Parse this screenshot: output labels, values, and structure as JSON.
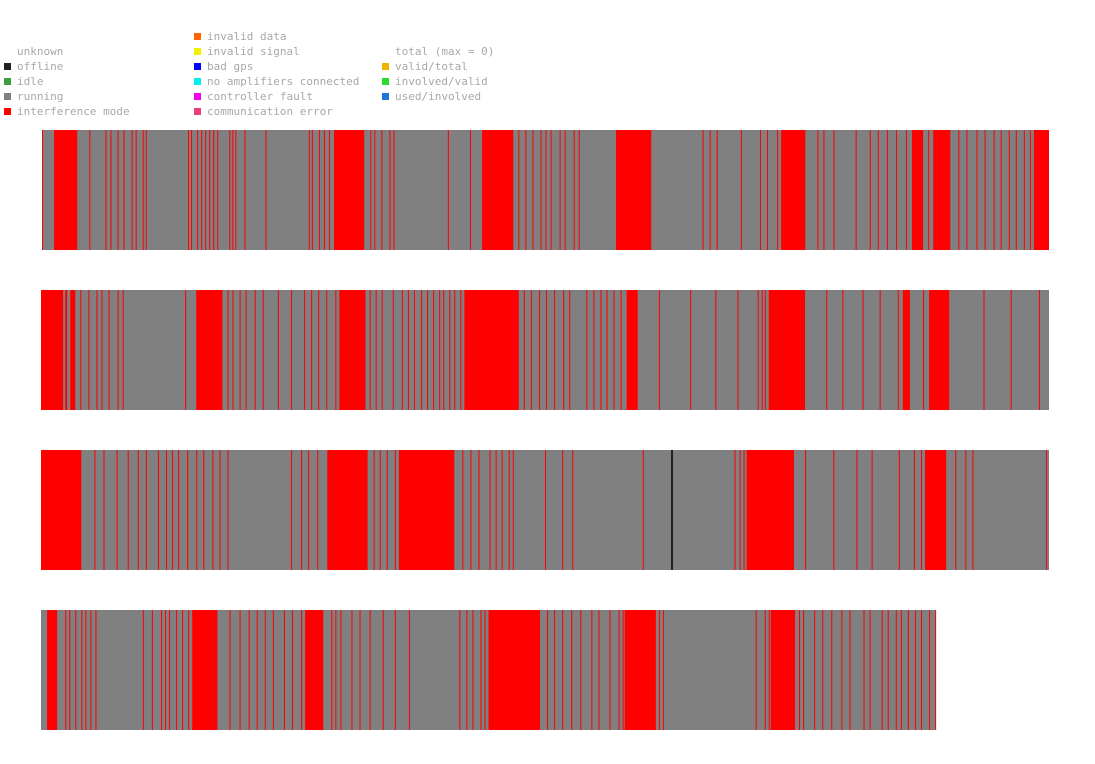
{
  "legend": {
    "status": [
      {
        "label": "unknown",
        "color": ""
      },
      {
        "label": "offline",
        "color": "#202020"
      },
      {
        "label": "idle",
        "color": "#3ca03c"
      },
      {
        "label": "running",
        "color": "#808080"
      },
      {
        "label": "interference mode",
        "color": "#ff0000"
      }
    ],
    "errors": [
      {
        "label": "invalid data",
        "color": "#ff6400"
      },
      {
        "label": "invalid signal",
        "color": "#f0f000"
      },
      {
        "label": "bad gps",
        "color": "#0000ff"
      },
      {
        "label": "no amplifiers connected",
        "color": "#00f0f0"
      },
      {
        "label": "controller fault",
        "color": "#f000f0"
      },
      {
        "label": "communication error",
        "color": "#f03c78"
      }
    ],
    "ratios": [
      {
        "label": "total (max = 0)",
        "color": ""
      },
      {
        "label": "valid/total",
        "color": "#f0b400"
      },
      {
        "label": "involved/valid",
        "color": "#28dc28"
      },
      {
        "label": "used/involved",
        "color": "#1e78dc"
      }
    ]
  },
  "chart_data": {
    "type": "heatmap",
    "title": "",
    "colors": {
      "running": "#808080",
      "interference mode": "#ff0000",
      "offline": "#202020",
      "idle": "#3ca03c"
    },
    "rows": [
      {
        "length": 1.0,
        "interference_mode": [
          [
            0.0,
            0.001
          ],
          [
            0.012,
            0.035
          ],
          [
            0.047,
            0.048
          ],
          [
            0.063,
            0.064
          ],
          [
            0.068,
            0.069
          ],
          [
            0.075,
            0.076
          ],
          [
            0.081,
            0.082
          ],
          [
            0.089,
            0.09
          ],
          [
            0.093,
            0.094
          ],
          [
            0.1,
            0.101
          ],
          [
            0.103,
            0.104
          ],
          [
            0.145,
            0.146
          ],
          [
            0.148,
            0.149
          ],
          [
            0.154,
            0.155
          ],
          [
            0.158,
            0.159
          ],
          [
            0.162,
            0.163
          ],
          [
            0.166,
            0.167
          ],
          [
            0.17,
            0.171
          ],
          [
            0.174,
            0.175
          ],
          [
            0.186,
            0.187
          ],
          [
            0.189,
            0.19
          ],
          [
            0.192,
            0.193
          ],
          [
            0.201,
            0.202
          ],
          [
            0.222,
            0.223
          ],
          [
            0.265,
            0.266
          ],
          [
            0.268,
            0.269
          ],
          [
            0.275,
            0.276
          ],
          [
            0.28,
            0.281
          ],
          [
            0.285,
            0.286
          ],
          [
            0.29,
            0.32
          ],
          [
            0.326,
            0.327
          ],
          [
            0.33,
            0.331
          ],
          [
            0.337,
            0.338
          ],
          [
            0.345,
            0.346
          ],
          [
            0.349,
            0.35
          ],
          [
            0.403,
            0.404
          ],
          [
            0.425,
            0.426
          ],
          [
            0.437,
            0.468
          ],
          [
            0.473,
            0.474
          ],
          [
            0.48,
            0.481
          ],
          [
            0.487,
            0.488
          ],
          [
            0.495,
            0.496
          ],
          [
            0.5,
            0.501
          ],
          [
            0.505,
            0.506
          ],
          [
            0.514,
            0.515
          ],
          [
            0.519,
            0.52
          ],
          [
            0.528,
            0.529
          ],
          [
            0.533,
            0.534
          ],
          [
            0.57,
            0.605
          ],
          [
            0.656,
            0.657
          ],
          [
            0.663,
            0.664
          ],
          [
            0.67,
            0.671
          ],
          [
            0.694,
            0.695
          ],
          [
            0.713,
            0.714
          ],
          [
            0.72,
            0.721
          ],
          [
            0.73,
            0.731
          ],
          [
            0.734,
            0.758
          ],
          [
            0.77,
            0.771
          ],
          [
            0.776,
            0.777
          ],
          [
            0.786,
            0.787
          ],
          [
            0.808,
            0.809
          ],
          [
            0.822,
            0.823
          ],
          [
            0.83,
            0.831
          ],
          [
            0.839,
            0.84
          ],
          [
            0.848,
            0.849
          ],
          [
            0.858,
            0.859
          ],
          [
            0.864,
            0.875
          ],
          [
            0.88,
            0.881
          ],
          [
            0.885,
            0.902
          ],
          [
            0.91,
            0.911
          ],
          [
            0.918,
            0.919
          ],
          [
            0.928,
            0.929
          ],
          [
            0.936,
            0.937
          ],
          [
            0.945,
            0.946
          ],
          [
            0.952,
            0.953
          ],
          [
            0.96,
            0.961
          ],
          [
            0.967,
            0.968
          ],
          [
            0.975,
            0.976
          ],
          [
            0.981,
            0.982
          ],
          [
            0.985,
            1.0
          ]
        ]
      },
      {
        "length": 1.0,
        "interference_mode": [
          [
            0.0,
            0.022
          ],
          [
            0.024,
            0.026
          ],
          [
            0.029,
            0.034
          ],
          [
            0.039,
            0.04
          ],
          [
            0.047,
            0.048
          ],
          [
            0.055,
            0.056
          ],
          [
            0.06,
            0.061
          ],
          [
            0.067,
            0.068
          ],
          [
            0.076,
            0.077
          ],
          [
            0.081,
            0.082
          ],
          [
            0.143,
            0.144
          ],
          [
            0.154,
            0.18
          ],
          [
            0.185,
            0.186
          ],
          [
            0.19,
            0.191
          ],
          [
            0.197,
            0.198
          ],
          [
            0.203,
            0.204
          ],
          [
            0.212,
            0.213
          ],
          [
            0.22,
            0.221
          ],
          [
            0.235,
            0.236
          ],
          [
            0.248,
            0.249
          ],
          [
            0.261,
            0.262
          ],
          [
            0.268,
            0.269
          ],
          [
            0.275,
            0.276
          ],
          [
            0.283,
            0.284
          ],
          [
            0.292,
            0.293
          ],
          [
            0.296,
            0.322
          ],
          [
            0.326,
            0.327
          ],
          [
            0.332,
            0.333
          ],
          [
            0.338,
            0.339
          ],
          [
            0.349,
            0.35
          ],
          [
            0.358,
            0.359
          ],
          [
            0.364,
            0.365
          ],
          [
            0.37,
            0.371
          ],
          [
            0.377,
            0.378
          ],
          [
            0.383,
            0.384
          ],
          [
            0.389,
            0.39
          ],
          [
            0.395,
            0.396
          ],
          [
            0.399,
            0.4
          ],
          [
            0.405,
            0.406
          ],
          [
            0.41,
            0.411
          ],
          [
            0.416,
            0.417
          ],
          [
            0.42,
            0.474
          ],
          [
            0.479,
            0.48
          ],
          [
            0.486,
            0.487
          ],
          [
            0.494,
            0.495
          ],
          [
            0.501,
            0.502
          ],
          [
            0.509,
            0.51
          ],
          [
            0.518,
            0.519
          ],
          [
            0.524,
            0.525
          ],
          [
            0.541,
            0.542
          ],
          [
            0.548,
            0.549
          ],
          [
            0.555,
            0.556
          ],
          [
            0.561,
            0.562
          ],
          [
            0.568,
            0.569
          ],
          [
            0.575,
            0.576
          ],
          [
            0.581,
            0.592
          ],
          [
            0.613,
            0.614
          ],
          [
            0.644,
            0.645
          ],
          [
            0.669,
            0.67
          ],
          [
            0.691,
            0.692
          ],
          [
            0.711,
            0.712
          ],
          [
            0.715,
            0.716
          ],
          [
            0.718,
            0.719
          ],
          [
            0.722,
            0.758
          ],
          [
            0.779,
            0.78
          ],
          [
            0.795,
            0.796
          ],
          [
            0.815,
            0.816
          ],
          [
            0.832,
            0.833
          ],
          [
            0.85,
            0.851
          ],
          [
            0.855,
            0.862
          ],
          [
            0.875,
            0.876
          ],
          [
            0.881,
            0.901
          ],
          [
            0.935,
            0.936
          ],
          [
            0.962,
            0.963
          ],
          [
            0.99,
            0.991
          ]
        ]
      },
      {
        "length": 1.0,
        "interference_mode": [
          [
            0.0,
            0.04
          ],
          [
            0.053,
            0.054
          ],
          [
            0.062,
            0.063
          ],
          [
            0.075,
            0.076
          ],
          [
            0.086,
            0.087
          ],
          [
            0.096,
            0.097
          ],
          [
            0.104,
            0.105
          ],
          [
            0.116,
            0.117
          ],
          [
            0.124,
            0.125
          ],
          [
            0.13,
            0.131
          ],
          [
            0.136,
            0.137
          ],
          [
            0.145,
            0.146
          ],
          [
            0.154,
            0.155
          ],
          [
            0.161,
            0.162
          ],
          [
            0.17,
            0.171
          ],
          [
            0.177,
            0.178
          ],
          [
            0.185,
            0.186
          ],
          [
            0.248,
            0.249
          ],
          [
            0.258,
            0.259
          ],
          [
            0.265,
            0.266
          ],
          [
            0.274,
            0.275
          ],
          [
            0.284,
            0.324
          ],
          [
            0.33,
            0.331
          ],
          [
            0.336,
            0.337
          ],
          [
            0.343,
            0.344
          ],
          [
            0.351,
            0.352
          ],
          [
            0.355,
            0.41
          ],
          [
            0.418,
            0.419
          ],
          [
            0.426,
            0.427
          ],
          [
            0.434,
            0.435
          ],
          [
            0.445,
            0.446
          ],
          [
            0.451,
            0.452
          ],
          [
            0.457,
            0.458
          ],
          [
            0.464,
            0.465
          ],
          [
            0.468,
            0.469
          ],
          [
            0.5,
            0.501
          ],
          [
            0.517,
            0.518
          ],
          [
            0.527,
            0.528
          ],
          [
            0.597,
            0.598
          ],
          [
            0.688,
            0.689
          ],
          [
            0.693,
            0.694
          ],
          [
            0.697,
            0.698
          ],
          [
            0.7,
            0.747
          ],
          [
            0.758,
            0.759
          ],
          [
            0.786,
            0.787
          ],
          [
            0.809,
            0.81
          ],
          [
            0.824,
            0.825
          ],
          [
            0.851,
            0.852
          ],
          [
            0.866,
            0.867
          ],
          [
            0.873,
            0.874
          ],
          [
            0.877,
            0.898
          ],
          [
            0.907,
            0.908
          ],
          [
            0.917,
            0.918
          ],
          [
            0.924,
            0.925
          ],
          [
            0.997,
            0.998
          ]
        ],
        "offline": [
          [
            0.625,
            0.627
          ]
        ]
      },
      {
        "length": 0.888,
        "interference_mode": [
          [
            0.006,
            0.016
          ],
          [
            0.024,
            0.025
          ],
          [
            0.028,
            0.029
          ],
          [
            0.034,
            0.035
          ],
          [
            0.04,
            0.041
          ],
          [
            0.044,
            0.045
          ],
          [
            0.049,
            0.05
          ],
          [
            0.054,
            0.055
          ],
          [
            0.101,
            0.102
          ],
          [
            0.11,
            0.111
          ],
          [
            0.119,
            0.12
          ],
          [
            0.123,
            0.124
          ],
          [
            0.127,
            0.128
          ],
          [
            0.134,
            0.135
          ],
          [
            0.14,
            0.141
          ],
          [
            0.146,
            0.147
          ],
          [
            0.15,
            0.175
          ],
          [
            0.187,
            0.188
          ],
          [
            0.197,
            0.198
          ],
          [
            0.206,
            0.207
          ],
          [
            0.214,
            0.215
          ],
          [
            0.222,
            0.223
          ],
          [
            0.23,
            0.231
          ],
          [
            0.241,
            0.242
          ],
          [
            0.249,
            0.25
          ],
          [
            0.258,
            0.259
          ],
          [
            0.262,
            0.28
          ],
          [
            0.288,
            0.289
          ],
          [
            0.292,
            0.293
          ],
          [
            0.297,
            0.298
          ],
          [
            0.308,
            0.309
          ],
          [
            0.316,
            0.317
          ],
          [
            0.326,
            0.327
          ],
          [
            0.339,
            0.34
          ],
          [
            0.351,
            0.352
          ],
          [
            0.365,
            0.366
          ],
          [
            0.415,
            0.416
          ],
          [
            0.422,
            0.423
          ],
          [
            0.428,
            0.429
          ],
          [
            0.436,
            0.437
          ],
          [
            0.44,
            0.441
          ],
          [
            0.444,
            0.495
          ],
          [
            0.502,
            0.503
          ],
          [
            0.509,
            0.51
          ],
          [
            0.517,
            0.518
          ],
          [
            0.526,
            0.527
          ],
          [
            0.535,
            0.536
          ],
          [
            0.546,
            0.547
          ],
          [
            0.553,
            0.554
          ],
          [
            0.564,
            0.565
          ],
          [
            0.573,
            0.574
          ],
          [
            0.577,
            0.578
          ],
          [
            0.579,
            0.61
          ],
          [
            0.613,
            0.614
          ],
          [
            0.617,
            0.618
          ],
          [
            0.709,
            0.71
          ],
          [
            0.718,
            0.719
          ],
          [
            0.722,
            0.723
          ],
          [
            0.724,
            0.748
          ],
          [
            0.752,
            0.753
          ],
          [
            0.756,
            0.757
          ],
          [
            0.767,
            0.768
          ],
          [
            0.775,
            0.776
          ],
          [
            0.784,
            0.785
          ],
          [
            0.794,
            0.795
          ],
          [
            0.802,
            0.803
          ],
          [
            0.816,
            0.817
          ],
          [
            0.822,
            0.823
          ],
          [
            0.834,
            0.835
          ],
          [
            0.84,
            0.841
          ],
          [
            0.848,
            0.849
          ],
          [
            0.853,
            0.854
          ],
          [
            0.86,
            0.861
          ],
          [
            0.867,
            0.868
          ],
          [
            0.873,
            0.874
          ],
          [
            0.881,
            0.882
          ],
          [
            0.887,
            0.888
          ]
        ]
      }
    ]
  }
}
